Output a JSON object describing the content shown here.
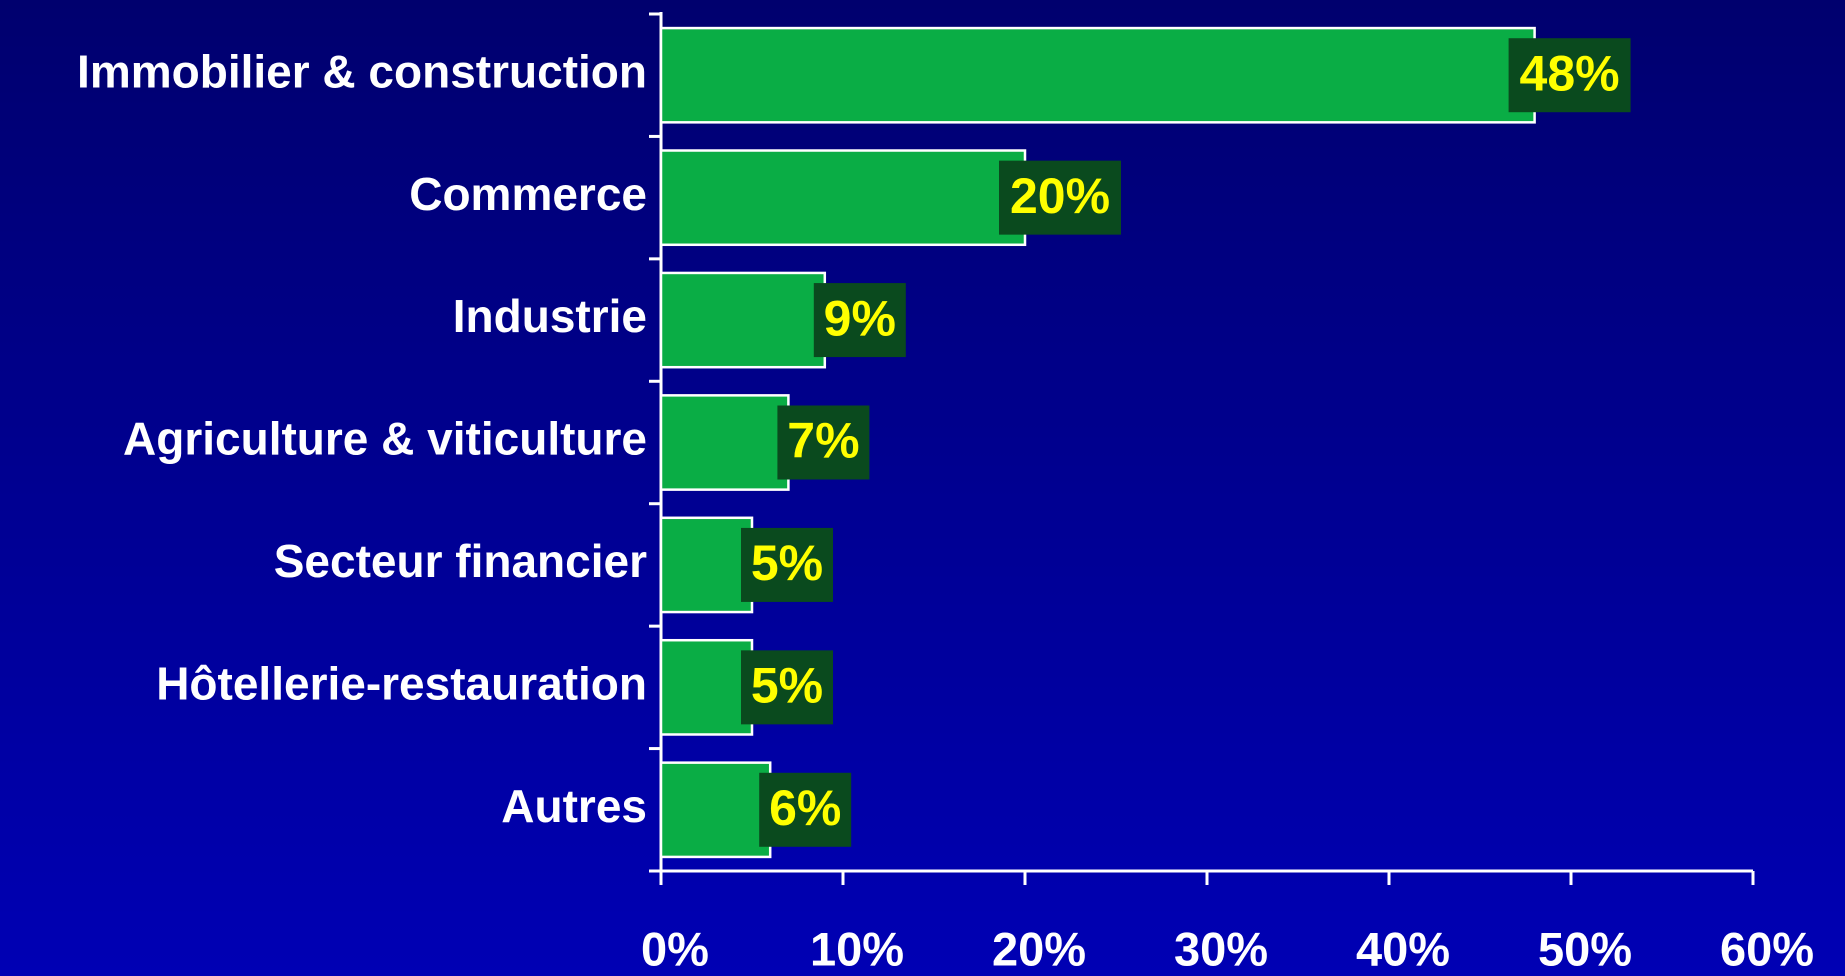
{
  "chart_data": {
    "type": "bar",
    "orientation": "horizontal",
    "categories": [
      "Immobilier & construction",
      "Commerce",
      "Industrie",
      "Agriculture & viticulture",
      "Secteur financier",
      "Hôtellerie-restauration",
      "Autres"
    ],
    "values": [
      48,
      20,
      9,
      7,
      5,
      5,
      6
    ],
    "value_labels": [
      "48%",
      "20%",
      "9%",
      "7%",
      "5%",
      "5%",
      "6%"
    ],
    "color": "#0aad45",
    "xlim": [
      0,
      60
    ],
    "xticks": [
      {
        "value": 0,
        "label": "0%"
      },
      {
        "value": 10,
        "label": "10%"
      },
      {
        "value": 20,
        "label": "20%"
      },
      {
        "value": 30,
        "label": "30%"
      },
      {
        "value": 40,
        "label": "40%"
      },
      {
        "value": 50,
        "label": "50%"
      },
      {
        "value": 60,
        "label": "60%"
      }
    ],
    "grid": false
  }
}
